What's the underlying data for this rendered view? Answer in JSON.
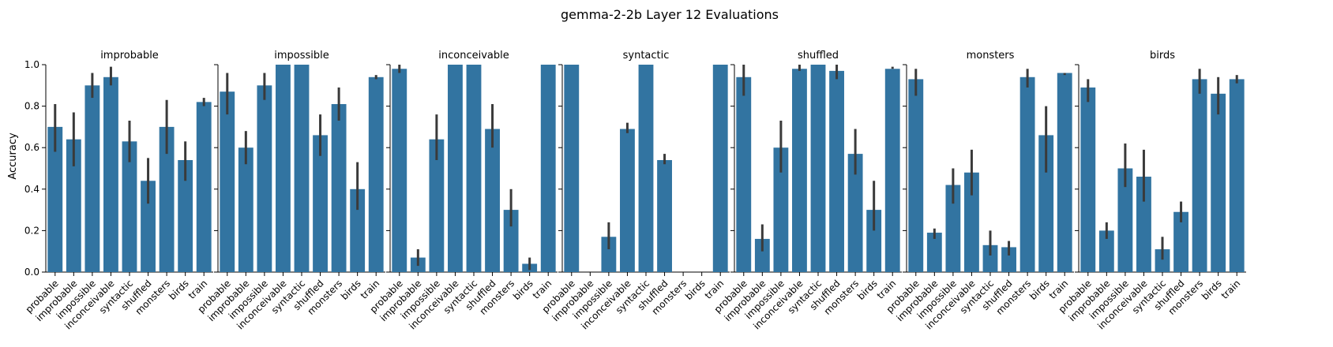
{
  "chart_data": {
    "type": "bar",
    "title": "gemma-2-2b Layer 12 Evaluations",
    "ylabel": "Accuracy",
    "ylim": [
      0,
      1.0
    ],
    "yticks": [
      "0.0",
      "0.2",
      "0.4",
      "0.6",
      "0.8",
      "1.0"
    ],
    "grid": false,
    "bar_color": "#3274a1",
    "error_color": "#3a3a3a",
    "categories": [
      "probable",
      "improbable",
      "impossible",
      "inconceivable",
      "syntactic",
      "shuffled",
      "monsters",
      "birds",
      "train"
    ],
    "panels": [
      {
        "title": "improbable",
        "values": [
          0.7,
          0.64,
          0.9,
          0.94,
          0.63,
          0.44,
          0.7,
          0.54,
          0.82
        ],
        "err_low": [
          0.58,
          0.51,
          0.84,
          0.9,
          0.53,
          0.33,
          0.57,
          0.44,
          0.8
        ],
        "err_high": [
          0.81,
          0.77,
          0.96,
          0.99,
          0.73,
          0.55,
          0.83,
          0.63,
          0.84
        ]
      },
      {
        "title": "impossible",
        "values": [
          0.87,
          0.6,
          0.9,
          1.0,
          1.0,
          0.66,
          0.81,
          0.4,
          0.94
        ],
        "err_low": [
          0.76,
          0.52,
          0.83,
          1.0,
          1.0,
          0.56,
          0.73,
          0.3,
          0.93
        ],
        "err_high": [
          0.96,
          0.68,
          0.96,
          1.0,
          1.0,
          0.76,
          0.89,
          0.53,
          0.95
        ]
      },
      {
        "title": "inconceivable",
        "values": [
          0.98,
          0.07,
          0.64,
          1.0,
          1.0,
          0.69,
          0.3,
          0.04,
          1.0
        ],
        "err_low": [
          0.96,
          0.03,
          0.54,
          1.0,
          1.0,
          0.6,
          0.22,
          0.01,
          1.0
        ],
        "err_high": [
          1.0,
          0.11,
          0.76,
          1.0,
          1.0,
          0.81,
          0.4,
          0.07,
          1.0
        ]
      },
      {
        "title": "syntactic",
        "values": [
          1.0,
          0.0,
          0.17,
          0.69,
          1.0,
          0.54,
          0.0,
          0.0,
          1.0
        ],
        "err_low": [
          1.0,
          0.0,
          0.11,
          0.67,
          1.0,
          0.52,
          0.0,
          0.0,
          1.0
        ],
        "err_high": [
          1.0,
          0.0,
          0.24,
          0.72,
          1.0,
          0.57,
          0.0,
          0.0,
          1.0
        ]
      },
      {
        "title": "shuffled",
        "values": [
          0.94,
          0.16,
          0.6,
          0.98,
          1.0,
          0.97,
          0.57,
          0.3,
          0.98
        ],
        "err_low": [
          0.85,
          0.1,
          0.48,
          0.97,
          1.0,
          0.93,
          0.47,
          0.2,
          0.98
        ],
        "err_high": [
          1.0,
          0.23,
          0.73,
          1.0,
          1.0,
          1.0,
          0.69,
          0.44,
          0.99
        ]
      },
      {
        "title": "monsters",
        "values": [
          0.93,
          0.19,
          0.42,
          0.48,
          0.13,
          0.12,
          0.94,
          0.66,
          0.96
        ],
        "err_low": [
          0.85,
          0.16,
          0.33,
          0.37,
          0.08,
          0.08,
          0.89,
          0.48,
          0.95
        ],
        "err_high": [
          0.98,
          0.21,
          0.5,
          0.59,
          0.2,
          0.15,
          0.98,
          0.8,
          0.96
        ]
      },
      {
        "title": "birds",
        "values": [
          0.89,
          0.2,
          0.5,
          0.46,
          0.11,
          0.29,
          0.93,
          0.86,
          0.93
        ],
        "err_low": [
          0.82,
          0.16,
          0.41,
          0.34,
          0.06,
          0.24,
          0.86,
          0.76,
          0.91
        ],
        "err_high": [
          0.93,
          0.24,
          0.62,
          0.59,
          0.17,
          0.34,
          0.98,
          0.94,
          0.95
        ]
      }
    ]
  }
}
